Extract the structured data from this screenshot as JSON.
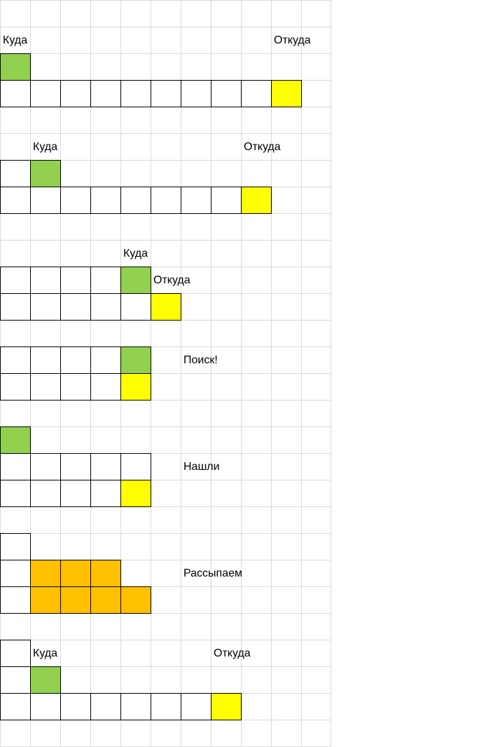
{
  "colors": {
    "gridline": "#d9d9d9",
    "cell_border": "#000000",
    "empty": "#ffffff",
    "target": "#92d050",
    "source": "#ffff00",
    "scattered": "#ffc000"
  },
  "diagram": {
    "steps": [
      {
        "labels": [
          {
            "key": "kuda",
            "text": "Куда"
          },
          {
            "key": "otkuda",
            "text": "Откуда"
          }
        ]
      },
      {
        "labels": [
          {
            "key": "kuda",
            "text": "Куда"
          },
          {
            "key": "otkuda",
            "text": "Откуда"
          }
        ]
      },
      {
        "labels": [
          {
            "key": "kuda",
            "text": "Куда"
          },
          {
            "key": "otkuda",
            "text": "Откуда"
          }
        ]
      },
      {
        "labels": [
          {
            "key": "caption",
            "text": "Поиск!"
          }
        ]
      },
      {
        "labels": [
          {
            "key": "caption",
            "text": "Нашли"
          }
        ]
      },
      {
        "labels": [
          {
            "key": "caption",
            "text": "Рассыпаем"
          }
        ]
      },
      {
        "labels": [
          {
            "key": "kuda",
            "text": "Куда"
          },
          {
            "key": "otkuda",
            "text": "Откуда"
          }
        ]
      }
    ]
  }
}
